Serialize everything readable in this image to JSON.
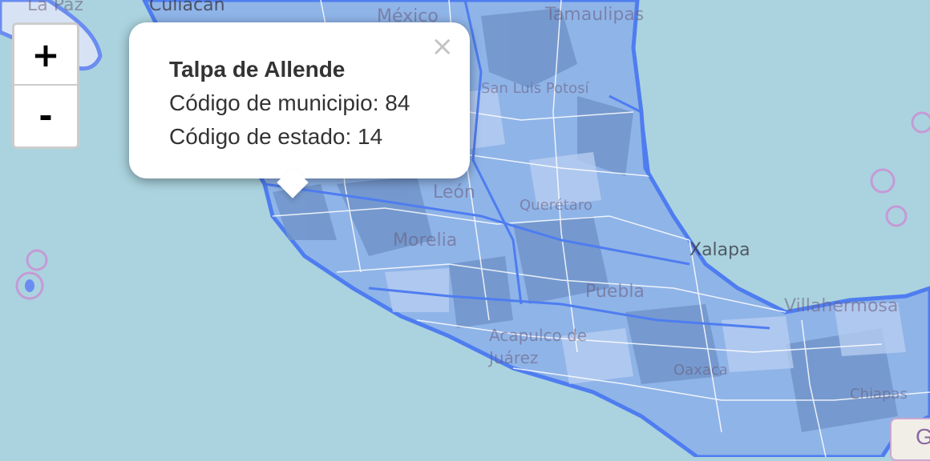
{
  "map": {
    "place_labels": [
      "La Paz",
      "Culiacán",
      "México",
      "Tamaulipas",
      "San Luis Potosí",
      "León",
      "Morelia",
      "Querétaro",
      "Xalapa",
      "Puebla",
      "Acapulco de Juárez",
      "Oaxaca",
      "Villahermosa",
      "Chiapas"
    ],
    "colors": {
      "sea": "#aad3df",
      "land": "#f2efe9",
      "region_fill": "#8fb4e8",
      "region_fill_dark": "#6f93c8",
      "region_stroke": "#ffffff",
      "border_stroke": "#4f7df0"
    }
  },
  "zoom_control": {
    "zoom_in_label": "+",
    "zoom_out_label": "-"
  },
  "popup": {
    "title": "Talpa de Allende",
    "line1": "Código de municipio: 84",
    "line2": "Código de estado: 14",
    "close_label": "×"
  },
  "corner_label": "G"
}
